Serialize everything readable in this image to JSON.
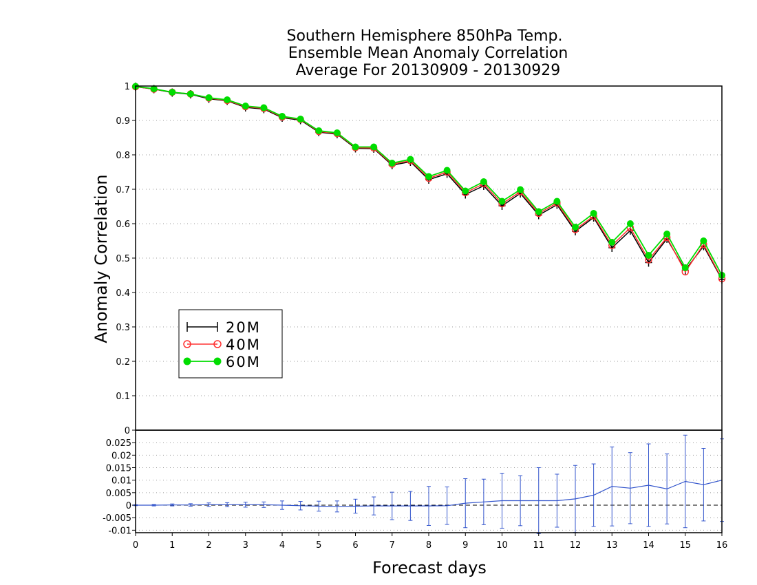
{
  "chart_data": [
    {
      "type": "line",
      "title": [
        "Southern Hemisphere 850hPa Temp.",
        "Ensemble Mean Anomaly Correlation",
        "Average For 20130909 - 20130929"
      ],
      "ylabel": "Anomaly Correlation",
      "xlabel": "Forecast days",
      "xlim": [
        0,
        16
      ],
      "ylim": [
        0,
        1
      ],
      "x_ticks": [
        "0",
        "1",
        "2",
        "3",
        "4",
        "5",
        "6",
        "7",
        "8",
        "9",
        "10",
        "11",
        "12",
        "13",
        "14",
        "15",
        "16"
      ],
      "y_ticks": [
        "0",
        "0.1",
        "0.2",
        "0.3",
        "0.4",
        "0.5",
        "0.6",
        "0.7",
        "0.8",
        "0.9",
        "1"
      ],
      "grid": true,
      "legend_position": "left",
      "x": [
        0,
        0.5,
        1,
        1.5,
        2,
        2.5,
        3,
        3.5,
        4,
        4.5,
        5,
        5.5,
        6,
        6.5,
        7,
        7.5,
        8,
        8.5,
        9,
        9.5,
        10,
        10.5,
        11,
        11.5,
        12,
        12.5,
        13,
        13.5,
        14,
        14.5,
        15,
        15.5,
        16
      ],
      "series": [
        {
          "name": "20M",
          "color": "#000000",
          "marker": "plus",
          "values": [
            0.998,
            0.991,
            0.981,
            0.976,
            0.963,
            0.957,
            0.938,
            0.933,
            0.908,
            0.901,
            0.866,
            0.86,
            0.819,
            0.818,
            0.77,
            0.78,
            0.728,
            0.745,
            0.685,
            0.71,
            0.652,
            0.688,
            0.625,
            0.655,
            0.578,
            0.618,
            0.53,
            0.58,
            0.487,
            0.556,
            0.465,
            0.535,
            0.438
          ]
        },
        {
          "name": "40M",
          "color": "#ff3030",
          "marker": "circle-open",
          "values": [
            0.998,
            0.991,
            0.982,
            0.977,
            0.965,
            0.958,
            0.94,
            0.935,
            0.91,
            0.903,
            0.868,
            0.862,
            0.821,
            0.82,
            0.773,
            0.783,
            0.732,
            0.75,
            0.69,
            0.716,
            0.658,
            0.693,
            0.63,
            0.66,
            0.583,
            0.622,
            0.537,
            0.588,
            0.495,
            0.56,
            0.46,
            0.54,
            0.44
          ]
        },
        {
          "name": "60M",
          "color": "#00dd00",
          "marker": "circle-filled",
          "values": [
            0.999,
            0.992,
            0.982,
            0.977,
            0.966,
            0.96,
            0.942,
            0.937,
            0.912,
            0.904,
            0.87,
            0.864,
            0.823,
            0.823,
            0.776,
            0.787,
            0.737,
            0.755,
            0.695,
            0.722,
            0.665,
            0.699,
            0.635,
            0.665,
            0.59,
            0.63,
            0.546,
            0.6,
            0.508,
            0.57,
            0.472,
            0.55,
            0.45
          ]
        }
      ]
    },
    {
      "type": "line",
      "xlim": [
        0,
        16
      ],
      "ylim": [
        -0.011,
        0.03
      ],
      "y_ticks": [
        "0.025",
        "0.02",
        "0.015",
        "0.01",
        "0.005",
        "0",
        "-0.005",
        "-0.01"
      ],
      "color": "#3355cc",
      "x": [
        0,
        0.5,
        1,
        1.5,
        2,
        2.5,
        3,
        3.5,
        4,
        4.5,
        5,
        5.5,
        6,
        6.5,
        7,
        7.5,
        8,
        8.5,
        9,
        9.5,
        10,
        10.5,
        11,
        11.5,
        12,
        12.5,
        13,
        13.5,
        14,
        14.5,
        15,
        15.5,
        16
      ],
      "values": [
        0,
        0,
        0.0001,
        0.0001,
        0.0002,
        0.0002,
        0.0002,
        0.0002,
        0,
        -0.0002,
        -0.0004,
        -0.0005,
        -0.0004,
        -0.0003,
        -0.0003,
        -0.0003,
        -0.0003,
        -0.0002,
        0.0008,
        0.0013,
        0.0018,
        0.0018,
        0.0018,
        0.0018,
        0.0025,
        0.004,
        0.0075,
        0.0068,
        0.008,
        0.0065,
        0.0095,
        0.0082,
        0.01
      ],
      "error_half": [
        0.0002,
        0.0003,
        0.0004,
        0.0005,
        0.0007,
        0.0008,
        0.001,
        0.0011,
        0.0017,
        0.0017,
        0.002,
        0.0022,
        0.0028,
        0.0036,
        0.0055,
        0.0058,
        0.0078,
        0.0075,
        0.0098,
        0.0091,
        0.011,
        0.01,
        0.0132,
        0.0106,
        0.0134,
        0.0125,
        0.0158,
        0.0142,
        0.0165,
        0.014,
        0.0185,
        0.0145,
        0.0165
      ]
    }
  ],
  "legend": {
    "items": [
      "20M",
      "40M",
      "60M"
    ]
  }
}
